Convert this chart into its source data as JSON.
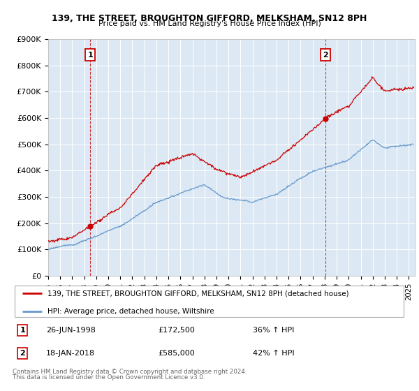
{
  "title1": "139, THE STREET, BROUGHTON GIFFORD, MELKSHAM, SN12 8PH",
  "title2": "Price paid vs. HM Land Registry's House Price Index (HPI)",
  "ylabel_ticks": [
    "£0",
    "£100K",
    "£200K",
    "£300K",
    "£400K",
    "£500K",
    "£600K",
    "£700K",
    "£800K",
    "£900K"
  ],
  "ylim": [
    0,
    900000
  ],
  "xlim_start": 1995.0,
  "xlim_end": 2025.5,
  "legend_line1": "139, THE STREET, BROUGHTON GIFFORD, MELKSHAM, SN12 8PH (detached house)",
  "legend_line2": "HPI: Average price, detached house, Wiltshire",
  "purchase1_date": "26-JUN-1998",
  "purchase1_price": "£172,500",
  "purchase1_hpi": "36% ↑ HPI",
  "purchase2_date": "18-JAN-2018",
  "purchase2_price": "£585,000",
  "purchase2_hpi": "42% ↑ HPI",
  "footer": "Contains HM Land Registry data © Crown copyright and database right 2024.\nThis data is licensed under the Open Government Licence v3.0.",
  "red_color": "#cc0000",
  "blue_color": "#6699cc",
  "bg_color": "#dce9f5",
  "purchase1_x": 1998.49,
  "purchase2_x": 2018.05,
  "xtick_years": [
    1995,
    1996,
    1997,
    1998,
    1999,
    2000,
    2001,
    2002,
    2003,
    2004,
    2005,
    2006,
    2007,
    2008,
    2009,
    2010,
    2011,
    2012,
    2013,
    2014,
    2015,
    2016,
    2017,
    2018,
    2019,
    2020,
    2021,
    2022,
    2023,
    2024,
    2025
  ]
}
